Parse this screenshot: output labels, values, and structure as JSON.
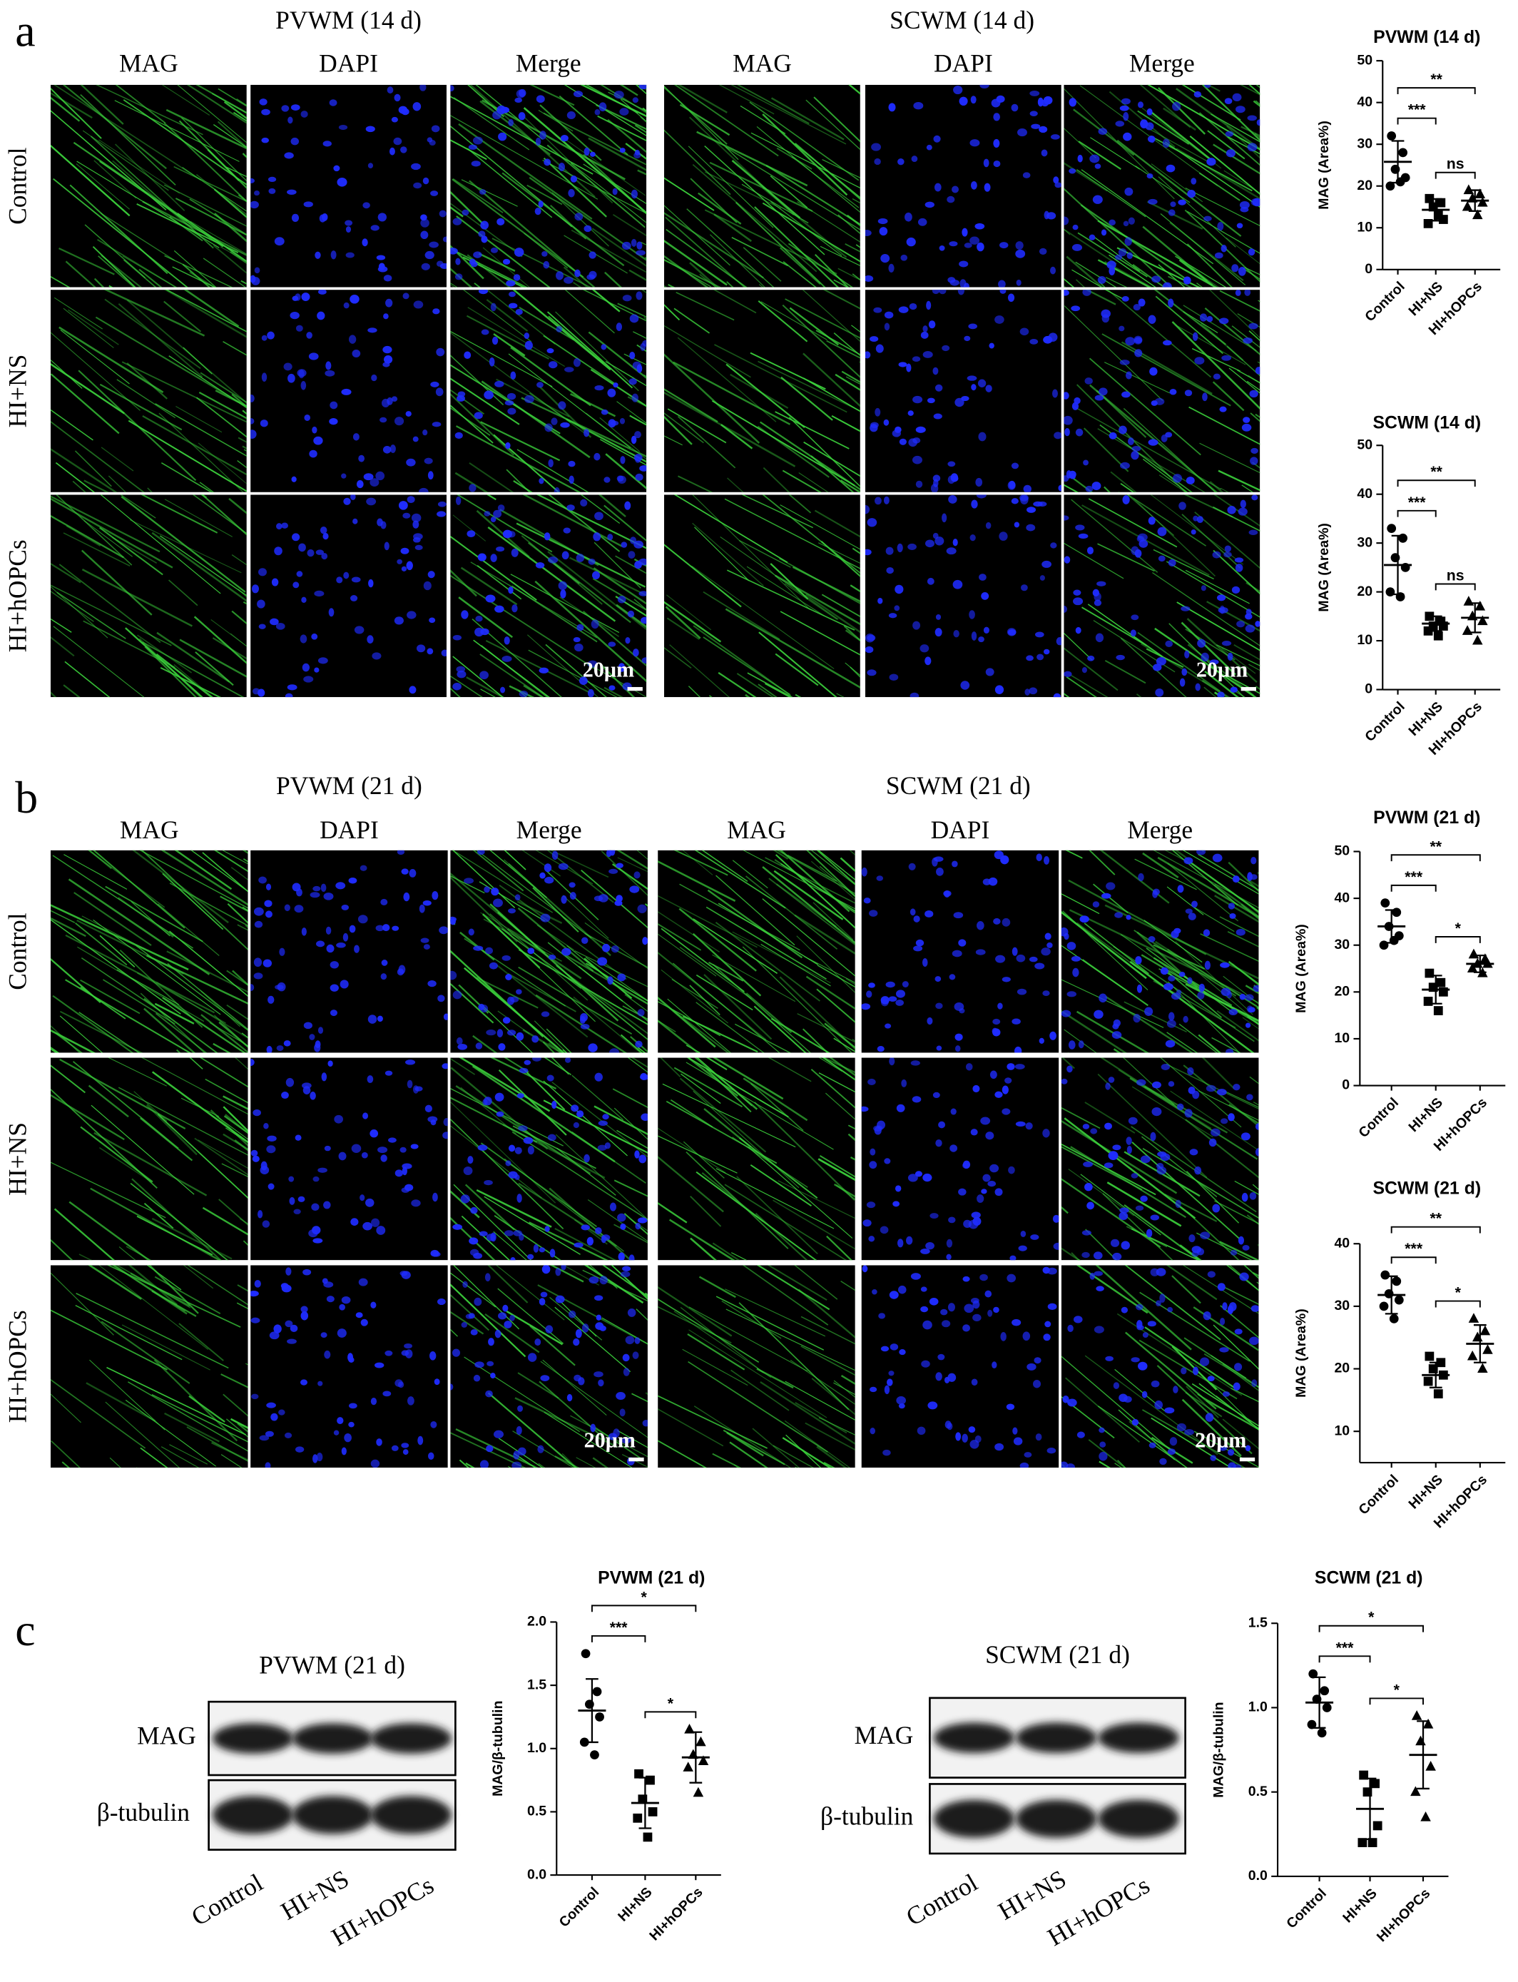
{
  "figure": {
    "labels": [
      "a",
      "b",
      "c"
    ],
    "microscopy": [
      {
        "region_titles": [
          "PVWM (14 d)",
          "SCWM (14 d)"
        ],
        "columns": [
          "MAG",
          "DAPI",
          "Merge"
        ],
        "rows": [
          "Control",
          "HI+NS",
          "HI+hOPCs"
        ],
        "scale_bar": "20μm"
      },
      {
        "region_titles": [
          "PVWM (21 d)",
          "SCWM (21 d)"
        ],
        "columns": [
          "MAG",
          "DAPI",
          "Merge"
        ],
        "rows": [
          "Control",
          "HI+NS",
          "HI+hOPCs"
        ],
        "scale_bar": "20μm"
      }
    ],
    "blots": [
      {
        "title": "PVWM (21 d)",
        "rows": [
          "MAG",
          "β-tubulin"
        ],
        "lanes": [
          "Control",
          "HI+NS",
          "HI+hOPCs"
        ]
      },
      {
        "title": "SCWM (21 d)",
        "rows": [
          "MAG",
          "β-tubulin"
        ],
        "lanes": [
          "Control",
          "HI+NS",
          "HI+hOPCs"
        ]
      }
    ]
  },
  "chart_data": [
    {
      "type": "strip",
      "title": "PVWM (14 d)",
      "y_label": "MAG (Area%)",
      "categories": [
        "Control",
        "HI+NS",
        "HI+hOPCs"
      ],
      "markers": [
        "circle",
        "square",
        "triangle"
      ],
      "color": "#000000",
      "points": [
        [
          32,
          28,
          24,
          22,
          20,
          21
        ],
        [
          17,
          16,
          15,
          12,
          11,
          13
        ],
        [
          19,
          18,
          17,
          16,
          15,
          13
        ]
      ],
      "mean": [
        25.8,
        14.3,
        16.5
      ],
      "sd": [
        5,
        2.6,
        2.5
      ],
      "ylim": [
        0,
        50
      ],
      "yticks": [
        0,
        10,
        20,
        30,
        40,
        50
      ],
      "brackets": [
        {
          "groups": [
            "HI+NS",
            "HI+hOPCs"
          ],
          "label": "ns"
        },
        {
          "groups": [
            "Control",
            "HI+NS"
          ],
          "label": "***"
        },
        {
          "groups": [
            "Control",
            "HI+hOPCs"
          ],
          "label": "**"
        }
      ]
    },
    {
      "type": "strip",
      "title": "SCWM (14 d)",
      "y_label": "MAG (Area%)",
      "categories": [
        "Control",
        "HI+NS",
        "HI+hOPCs"
      ],
      "markers": [
        "circle",
        "square",
        "triangle"
      ],
      "color": "#000000",
      "points": [
        [
          33,
          31,
          27,
          25,
          20,
          19
        ],
        [
          15,
          14,
          13,
          13,
          12,
          11
        ],
        [
          18,
          17,
          15,
          14,
          12,
          10
        ]
      ],
      "mean": [
        25.5,
        13.5,
        14.7
      ],
      "sd": [
        6,
        1.5,
        3
      ],
      "ylim": [
        0,
        50
      ],
      "yticks": [
        0,
        10,
        20,
        30,
        40,
        50
      ],
      "brackets": [
        {
          "groups": [
            "HI+NS",
            "HI+hOPCs"
          ],
          "label": "ns"
        },
        {
          "groups": [
            "Control",
            "HI+NS"
          ],
          "label": "***"
        },
        {
          "groups": [
            "Control",
            "HI+hOPCs"
          ],
          "label": "**"
        }
      ]
    },
    {
      "type": "strip",
      "title": "PVWM (21 d)",
      "y_label": "MAG (Area%)",
      "categories": [
        "Control",
        "HI+NS",
        "HI+hOPCs"
      ],
      "markers": [
        "circle",
        "square",
        "triangle"
      ],
      "color": "#000000",
      "points": [
        [
          39,
          37,
          34,
          32,
          30,
          31
        ],
        [
          24,
          22,
          21,
          20,
          18,
          16
        ],
        [
          28,
          27,
          26,
          26,
          25,
          24
        ]
      ],
      "mean": [
        34,
        20.5,
        26
      ],
      "sd": [
        3.5,
        3,
        1.8
      ],
      "ylim": [
        0,
        50
      ],
      "yticks": [
        0,
        10,
        20,
        30,
        40,
        50
      ],
      "brackets": [
        {
          "groups": [
            "HI+NS",
            "HI+hOPCs"
          ],
          "label": "*"
        },
        {
          "groups": [
            "Control",
            "HI+NS"
          ],
          "label": "***"
        },
        {
          "groups": [
            "Control",
            "HI+hOPCs"
          ],
          "label": "**"
        }
      ]
    },
    {
      "type": "strip",
      "title": "SCWM (21 d)",
      "y_label": "MAG (Area%)",
      "categories": [
        "Control",
        "HI+NS",
        "HI+hOPCs"
      ],
      "markers": [
        "circle",
        "square",
        "triangle"
      ],
      "color": "#000000",
      "points": [
        [
          35,
          34,
          32,
          31,
          30,
          28
        ],
        [
          22,
          21,
          20,
          19,
          18,
          16
        ],
        [
          28,
          26,
          25,
          23,
          22,
          20
        ]
      ],
      "mean": [
        31.8,
        19,
        24
      ],
      "sd": [
        3,
        2,
        3
      ],
      "ylim": [
        5,
        40
      ],
      "yticks": [
        10,
        20,
        30,
        40
      ],
      "brackets": [
        {
          "groups": [
            "HI+NS",
            "HI+hOPCs"
          ],
          "label": "*"
        },
        {
          "groups": [
            "Control",
            "HI+NS"
          ],
          "label": "***"
        },
        {
          "groups": [
            "Control",
            "HI+hOPCs"
          ],
          "label": "**"
        }
      ]
    },
    {
      "type": "strip",
      "title": "PVWM (21 d)",
      "y_label": "MAG/β-tubulin",
      "categories": [
        "Control",
        "HI+NS",
        "HI+hOPCs"
      ],
      "markers": [
        "circle",
        "square",
        "triangle"
      ],
      "color": "#000000",
      "points": [
        [
          1.75,
          1.45,
          1.35,
          1.25,
          1.05,
          0.95
        ],
        [
          0.8,
          0.75,
          0.6,
          0.5,
          0.45,
          0.3
        ],
        [
          1.15,
          1.05,
          0.95,
          0.9,
          0.85,
          0.65
        ]
      ],
      "mean": [
        1.3,
        0.57,
        0.93
      ],
      "sd": [
        0.25,
        0.2,
        0.2
      ],
      "ylim": [
        0,
        2
      ],
      "yticks": [
        {
          "value": 0,
          "label": "0.0"
        },
        {
          "value": 0.5,
          "label": "0.5"
        },
        {
          "value": 1,
          "label": "1.0"
        },
        {
          "value": 1.5,
          "label": "1.5"
        },
        {
          "value": 2,
          "label": "2.0"
        }
      ],
      "brackets": [
        {
          "groups": [
            "HI+NS",
            "HI+hOPCs"
          ],
          "label": "*"
        },
        {
          "groups": [
            "Control",
            "HI+NS"
          ],
          "label": "***"
        },
        {
          "groups": [
            "Control",
            "HI+hOPCs"
          ],
          "label": "*"
        }
      ]
    },
    {
      "type": "strip",
      "title": "SCWM (21 d)",
      "y_label": "MAG/β-tubulin",
      "categories": [
        "Control",
        "HI+NS",
        "HI+hOPCs"
      ],
      "markers": [
        "circle",
        "square",
        "triangle"
      ],
      "color": "#000000",
      "points": [
        [
          1.2,
          1.1,
          1.05,
          1,
          0.9,
          0.85
        ],
        [
          0.6,
          0.55,
          0.5,
          0.3,
          0.2,
          0.2
        ],
        [
          0.95,
          0.9,
          0.8,
          0.65,
          0.5,
          0.35
        ]
      ],
      "mean": [
        1.03,
        0.4,
        0.72
      ],
      "sd": [
        0.15,
        0.18,
        0.2
      ],
      "ylim": [
        0,
        1.5
      ],
      "yticks": [
        {
          "value": 0,
          "label": "0.0"
        },
        {
          "value": 0.5,
          "label": "0.5"
        },
        {
          "value": 1,
          "label": "1.0"
        },
        {
          "value": 1.5,
          "label": "1.5"
        }
      ],
      "brackets": [
        {
          "groups": [
            "HI+NS",
            "HI+hOPCs"
          ],
          "label": "*"
        },
        {
          "groups": [
            "Control",
            "HI+NS"
          ],
          "label": "***"
        },
        {
          "groups": [
            "Control",
            "HI+hOPCs"
          ],
          "label": "*"
        }
      ]
    }
  ]
}
